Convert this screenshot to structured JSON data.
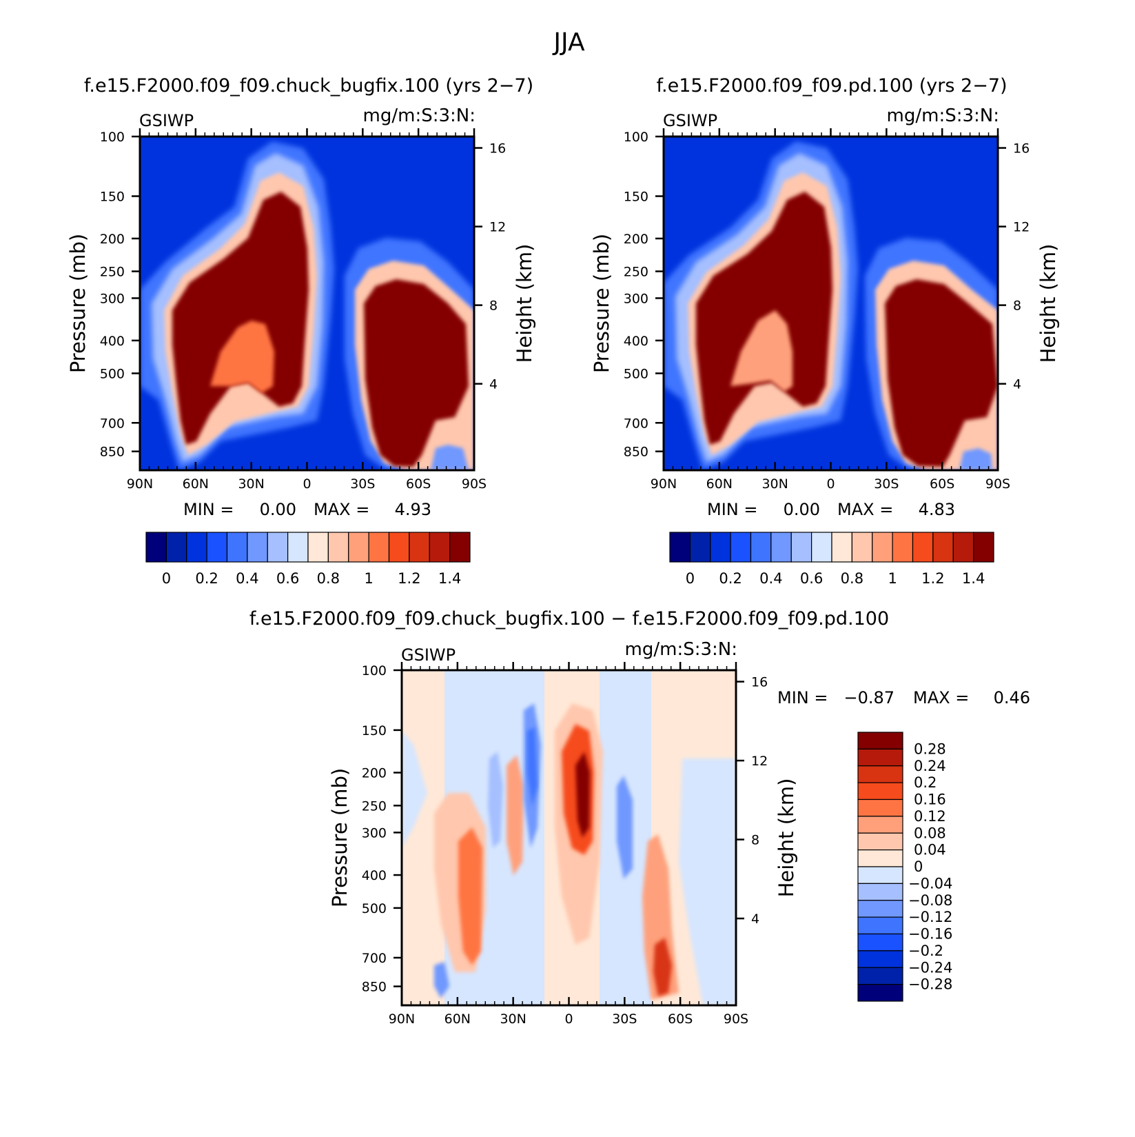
{
  "title": "JJA",
  "chart_data": [
    {
      "type": "heatmap",
      "panel": "top-left",
      "title": "f.e15.F2000.f09_f09.chuck_bugfix.100 (yrs 2−7)",
      "left_label": "GSIWP",
      "units": "mg/m:S:3:N:",
      "ylabel": "Pressure (mb)",
      "y2label": "Height (km)",
      "xticks": [
        "90N",
        "60N",
        "30N",
        "0",
        "30S",
        "60S",
        "90S"
      ],
      "yticks": [
        100,
        150,
        200,
        250,
        300,
        400,
        500,
        700,
        850
      ],
      "y2ticks": [
        16,
        12,
        8,
        4
      ],
      "min_label": "MIN =",
      "min": "0.00",
      "max_label": "MAX =",
      "max": "4.93",
      "colorbar": {
        "orientation": "horizontal",
        "labels": [
          "0",
          "0.2",
          "0.4",
          "0.6",
          "0.8",
          "1",
          "1.2",
          "1.4"
        ],
        "colors": [
          "#00007a",
          "#0022aa",
          "#0033dd",
          "#1a52ff",
          "#3f74ff",
          "#7098ff",
          "#a5bfff",
          "#d6e6ff",
          "#ffe8d7",
          "#ffc7ad",
          "#ffa07b",
          "#ff7443",
          "#f64b1c",
          "#d83412",
          "#b51a0a",
          "#840000"
        ]
      }
    },
    {
      "type": "heatmap",
      "panel": "top-right",
      "title": "f.e15.F2000.f09_f09.pd.100 (yrs 2−7)",
      "left_label": "GSIWP",
      "units": "mg/m:S:3:N:",
      "ylabel": "Pressure (mb)",
      "y2label": "Height (km)",
      "xticks": [
        "90N",
        "60N",
        "30N",
        "0",
        "30S",
        "60S",
        "90S"
      ],
      "yticks": [
        100,
        150,
        200,
        250,
        300,
        400,
        500,
        700,
        850
      ],
      "y2ticks": [
        16,
        12,
        8,
        4
      ],
      "min_label": "MIN =",
      "min": "0.00",
      "max_label": "MAX =",
      "max": "4.83",
      "colorbar": {
        "orientation": "horizontal",
        "labels": [
          "0",
          "0.2",
          "0.4",
          "0.6",
          "0.8",
          "1",
          "1.2",
          "1.4"
        ],
        "colors": [
          "#00007a",
          "#0022aa",
          "#0033dd",
          "#1a52ff",
          "#3f74ff",
          "#7098ff",
          "#a5bfff",
          "#d6e6ff",
          "#ffe8d7",
          "#ffc7ad",
          "#ffa07b",
          "#ff7443",
          "#f64b1c",
          "#d83412",
          "#b51a0a",
          "#840000"
        ]
      }
    },
    {
      "type": "heatmap",
      "panel": "bottom",
      "title": "f.e15.F2000.f09_f09.chuck_bugfix.100 − f.e15.F2000.f09_f09.pd.100",
      "left_label": "GSIWP",
      "units": "mg/m:S:3:N:",
      "ylabel": "Pressure (mb)",
      "y2label": "Height (km)",
      "xticks": [
        "90N",
        "60N",
        "30N",
        "0",
        "30S",
        "60S",
        "90S"
      ],
      "yticks": [
        100,
        150,
        200,
        250,
        300,
        400,
        500,
        700,
        850
      ],
      "y2ticks": [
        16,
        12,
        8,
        4
      ],
      "min_label": "MIN =",
      "min": "−0.87",
      "max_label": "MAX =",
      "max": "0.46",
      "colorbar": {
        "orientation": "vertical",
        "labels": [
          "0.28",
          "0.24",
          "0.2",
          "0.16",
          "0.12",
          "0.08",
          "0.04",
          "0",
          "−0.04",
          "−0.08",
          "−0.12",
          "−0.16",
          "−0.2",
          "−0.24",
          "−0.28"
        ],
        "colors": [
          "#840000",
          "#b51a0a",
          "#d83412",
          "#f64b1c",
          "#ff7443",
          "#ffa07b",
          "#ffc7ad",
          "#ffe8d7",
          "#d6e6ff",
          "#a5bfff",
          "#7098ff",
          "#3f74ff",
          "#1a52ff",
          "#0033dd",
          "#0022aa",
          "#00007a"
        ]
      }
    }
  ]
}
